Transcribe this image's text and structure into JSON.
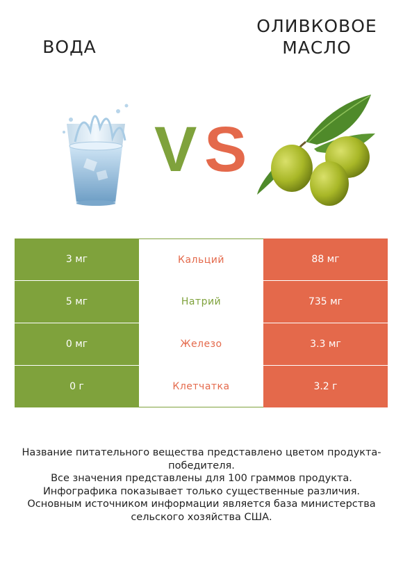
{
  "left_food": {
    "name": "Вода"
  },
  "right_food": {
    "name": "Оливковое масло"
  },
  "vs": {
    "v": "V",
    "s": "S"
  },
  "colors": {
    "left": "#7fa23c",
    "right": "#e4694b"
  },
  "nutrients": [
    {
      "name": "Кальций",
      "left": "3 мг",
      "right": "88 мг",
      "winner": "right"
    },
    {
      "name": "Натрий",
      "left": "5 мг",
      "right": "735 мг",
      "winner": "left"
    },
    {
      "name": "Железо",
      "left": "0 мг",
      "right": "3.3 мг",
      "winner": "right"
    },
    {
      "name": "Клетчатка",
      "left": "0 г",
      "right": "3.2 г",
      "winner": "right"
    }
  ],
  "footer": {
    "line1": "Название питательного вещества представлено цветом продукта-победителя.",
    "line2": "Все значения представлены для 100 граммов продукта.",
    "line3": "Инфографика показывает только существенные различия.",
    "line4": "Основным источником информации является база министерства сельского хозяйства США."
  }
}
